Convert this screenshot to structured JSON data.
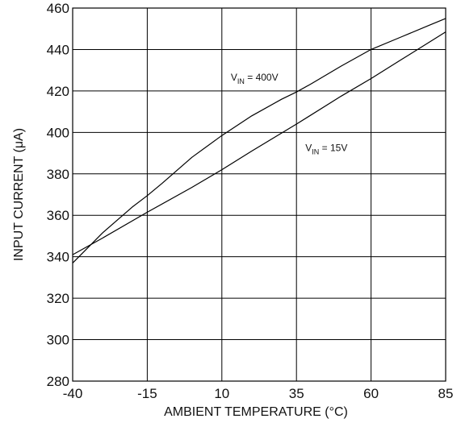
{
  "chart_data": {
    "type": "line",
    "title": "",
    "xlabel": "AMBIENT TEMPERATURE (°C)",
    "ylabel": "INPUT CURRENT (μA)",
    "xlim": [
      -40,
      85
    ],
    "ylim": [
      280,
      460
    ],
    "xticks": [
      -40,
      -15,
      10,
      35,
      60,
      85
    ],
    "yticks": [
      280,
      300,
      320,
      340,
      360,
      380,
      400,
      420,
      440,
      460
    ],
    "grid": true,
    "legend": "none",
    "series": [
      {
        "name": "VIN = 400V",
        "x": [
          -40,
          -30,
          -20,
          -15,
          -10,
          0,
          10,
          20,
          30,
          35,
          40,
          50,
          60,
          70,
          80,
          85
        ],
        "y": [
          337,
          351.5,
          364,
          369.5,
          375.5,
          388,
          398.5,
          408,
          416,
          419.5,
          423.5,
          432,
          440,
          446,
          452,
          455
        ]
      },
      {
        "name": "VIN = 15V",
        "x": [
          -40,
          -30,
          -15,
          0,
          10,
          20,
          35,
          50,
          60,
          70,
          85
        ],
        "y": [
          341,
          349,
          361.5,
          373.5,
          382,
          391,
          404,
          417.5,
          426,
          435,
          448.5
        ]
      }
    ],
    "annotations": [
      {
        "main": "V",
        "sub": "IN",
        "rest": " = 400V",
        "x": 13,
        "y": 425
      },
      {
        "main": "V",
        "sub": "IN",
        "rest": " = 15V",
        "x": 38,
        "y": 391
      }
    ]
  }
}
